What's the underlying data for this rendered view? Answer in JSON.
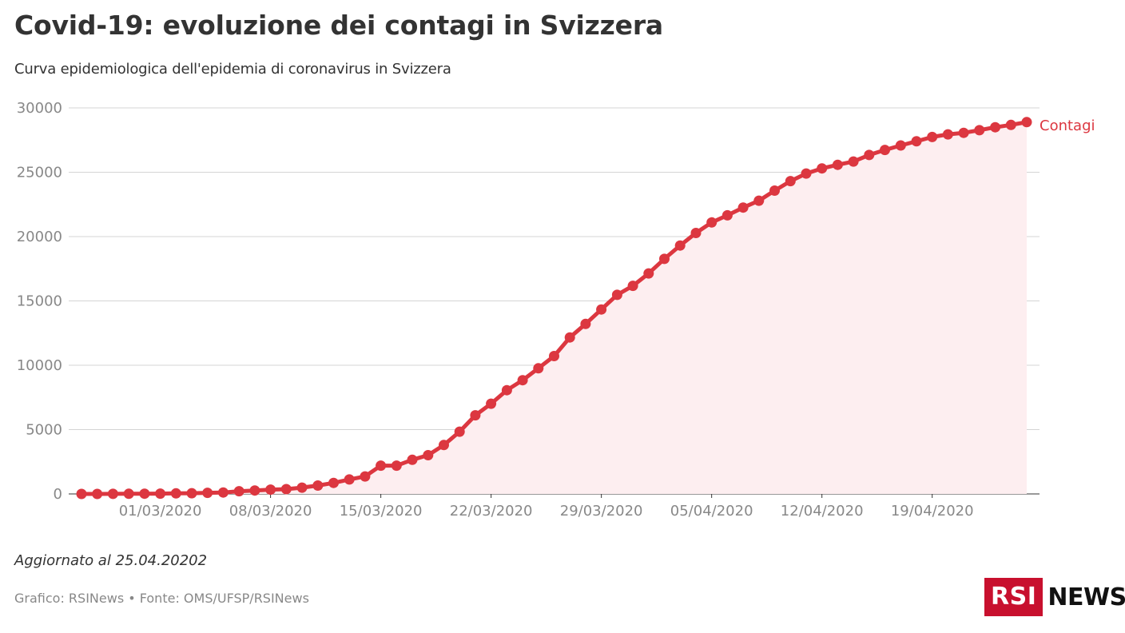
{
  "header": {
    "title": "Covid-19: evoluzione dei contagi in Svizzera",
    "subtitle": "Curva epidemiologica dell'epidemia di coronavirus in Svizzera"
  },
  "chart_data": {
    "type": "area",
    "x_start": "25/02/2020",
    "x_end": "25/04/2020",
    "x_ticks": [
      "01/03/2020",
      "08/03/2020",
      "15/03/2020",
      "22/03/2020",
      "29/03/2020",
      "05/04/2020",
      "12/04/2020",
      "19/04/2020"
    ],
    "y_ticks": [
      0,
      5000,
      10000,
      15000,
      20000,
      25000,
      30000
    ],
    "ylim": [
      0,
      30000
    ],
    "grid": true,
    "series": [
      {
        "name": "Contagi",
        "color": "#dc3740",
        "fill": "#fdeef0",
        "values": [
          1,
          1,
          8,
          10,
          18,
          24,
          42,
          56,
          90,
          114,
          214,
          268,
          337,
          374,
          491,
          652,
          858,
          1125,
          1359,
          2200,
          2200,
          2650,
          3010,
          3800,
          4840,
          6113,
          7014,
          8060,
          8836,
          9765,
          10714,
          12161,
          13213,
          14336,
          15475,
          16176,
          17139,
          18267,
          19303,
          20278,
          21100,
          21652,
          22253,
          22789,
          23574,
          24308,
          24900,
          25300,
          25580,
          25834,
          26340,
          26732,
          27078,
          27404,
          27740,
          27944,
          28063,
          28268,
          28496,
          28677,
          28894
        ]
      }
    ],
    "legend": "end-of-line label"
  },
  "footer": {
    "updated": "Aggiornato al 25.04.20202",
    "source": "Grafico: RSINews • Fonte: OMS/UFSP/RSINews",
    "logo_rsi": "RSI",
    "logo_news": "NEWS"
  }
}
